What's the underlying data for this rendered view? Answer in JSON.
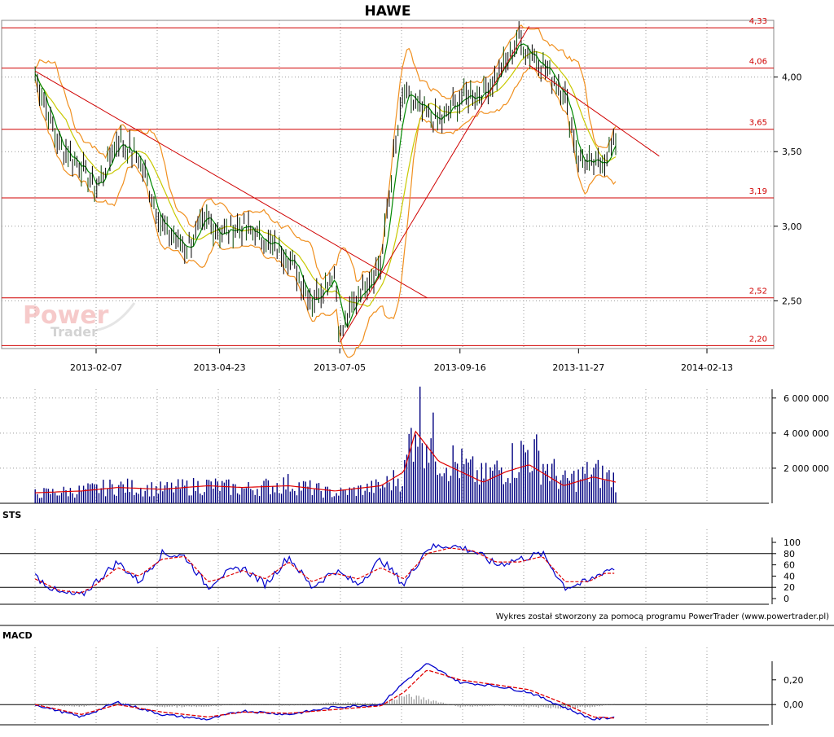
{
  "title": "HAWE",
  "watermark": {
    "line1": "Power",
    "line2": "Trader"
  },
  "credit": "Wykres został stworzony za pomocą programu PowerTrader (www.powertrader.pl)",
  "colors": {
    "price_up": "#000000",
    "price_down": "#004400",
    "sma_short": "#008800",
    "sma_long": "#c8c800",
    "bollinger": "#f09020",
    "levels": "#d00000",
    "volume_bars": "#000080",
    "volume_avg": "#e00000",
    "sts_k": "#0000cc",
    "sts_d": "#e00000",
    "macd_line": "#0000cc",
    "macd_signal": "#e00000",
    "macd_hist": "#808080"
  },
  "chart_data": [
    {
      "type": "candlestick",
      "panel": "price",
      "title": "HAWE",
      "x_tick_labels": [
        "2013-02-07",
        "2013-04-23",
        "2013-07-05",
        "2013-09-16",
        "2013-11-27",
        "2014-02-13"
      ],
      "y_tick_labels": [
        "2,50",
        "3,00",
        "3,50",
        "4,00"
      ],
      "ylim": [
        2.18,
        4.38
      ],
      "grid": true,
      "horizontal_levels": [
        {
          "value": 4.33,
          "label": "4,33"
        },
        {
          "value": 4.06,
          "label": "4,06"
        },
        {
          "value": 3.65,
          "label": "3,65"
        },
        {
          "value": 3.19,
          "label": "3,19"
        },
        {
          "value": 2.52,
          "label": "2,52"
        },
        {
          "value": 2.2,
          "label": "2,20"
        }
      ],
      "trendlines": [
        {
          "from": [
            "2013-01-01",
            4.04
          ],
          "to": [
            "2013-08-27",
            2.52
          ]
        },
        {
          "from": [
            "2013-07-05",
            2.22
          ],
          "to": [
            "2013-10-28",
            4.34
          ]
        },
        {
          "from": [
            "2013-10-28",
            4.08
          ],
          "to": [
            "2014-01-15",
            3.47
          ]
        }
      ],
      "series": [
        {
          "name": "close",
          "x": [
            "2013-01-01",
            "2013-01-15",
            "2013-01-29",
            "2013-02-07",
            "2013-02-20",
            "2013-03-05",
            "2013-03-19",
            "2013-04-02",
            "2013-04-16",
            "2013-04-23",
            "2013-05-07",
            "2013-05-21",
            "2013-06-04",
            "2013-06-18",
            "2013-07-02",
            "2013-07-05",
            "2013-07-16",
            "2013-07-30",
            "2013-08-06",
            "2013-08-13",
            "2013-08-20",
            "2013-09-03",
            "2013-09-16",
            "2013-09-30",
            "2013-10-14",
            "2013-10-21",
            "2013-11-04",
            "2013-11-18",
            "2013-11-27",
            "2013-12-06",
            "2013-12-13",
            "2013-12-20"
          ],
          "values": [
            4.02,
            3.55,
            3.4,
            3.25,
            3.58,
            3.45,
            3.0,
            2.85,
            3.05,
            2.95,
            3.0,
            2.9,
            2.8,
            2.5,
            2.7,
            2.25,
            2.55,
            2.75,
            3.4,
            3.9,
            3.8,
            3.7,
            3.85,
            3.9,
            4.1,
            4.25,
            4.1,
            3.9,
            3.45,
            3.4,
            3.45,
            3.6
          ]
        }
      ]
    },
    {
      "type": "bar",
      "panel": "volume",
      "y_tick_labels": [
        "2 000 000",
        "4 000 000",
        "6 000 000"
      ],
      "ylim": [
        0,
        6500000
      ],
      "x": [
        "2013-01-01",
        "2013-01-29",
        "2013-02-20",
        "2013-03-19",
        "2013-04-16",
        "2013-05-07",
        "2013-06-04",
        "2013-07-02",
        "2013-07-30",
        "2013-08-13",
        "2013-08-20",
        "2013-09-03",
        "2013-09-30",
        "2013-10-14",
        "2013-10-28",
        "2013-11-18",
        "2013-12-06",
        "2013-12-20"
      ],
      "values": [
        700000,
        900000,
        1200000,
        1000000,
        1300000,
        1000000,
        1400000,
        700000,
        1200000,
        2000000,
        6600000,
        3500000,
        1800000,
        2700000,
        3800000,
        1500000,
        2200000,
        1700000
      ],
      "series": [
        {
          "name": "average",
          "values": [
            600000,
            700000,
            900000,
            800000,
            1000000,
            900000,
            1000000,
            700000,
            1000000,
            1800000,
            4100000,
            2400000,
            1200000,
            1800000,
            2200000,
            1000000,
            1500000,
            1200000
          ]
        }
      ]
    },
    {
      "type": "line",
      "panel": "oscillator",
      "title": "STS",
      "y_tick_labels": [
        "0",
        "20",
        "40",
        "60",
        "80",
        "100"
      ],
      "ylim": [
        0,
        100
      ],
      "reference_lines": [
        20,
        80
      ],
      "x": [
        "2013-01-01",
        "2013-01-15",
        "2013-01-29",
        "2013-02-07",
        "2013-02-20",
        "2013-03-05",
        "2013-03-19",
        "2013-04-02",
        "2013-04-16",
        "2013-04-23",
        "2013-05-07",
        "2013-05-21",
        "2013-06-04",
        "2013-06-18",
        "2013-07-02",
        "2013-07-16",
        "2013-07-30",
        "2013-08-13",
        "2013-08-27",
        "2013-09-10",
        "2013-09-24",
        "2013-10-08",
        "2013-10-22",
        "2013-11-05",
        "2013-11-19",
        "2013-12-03",
        "2013-12-13",
        "2013-12-20"
      ],
      "series": [
        {
          "name": "%K",
          "values": [
            40,
            10,
            5,
            30,
            65,
            30,
            80,
            75,
            20,
            40,
            55,
            25,
            75,
            20,
            50,
            25,
            70,
            25,
            90,
            95,
            85,
            60,
            70,
            80,
            20,
            30,
            50,
            55
          ]
        },
        {
          "name": "%D",
          "values": [
            35,
            15,
            10,
            25,
            55,
            40,
            70,
            75,
            30,
            35,
            50,
            35,
            65,
            30,
            45,
            35,
            55,
            35,
            80,
            90,
            85,
            65,
            65,
            75,
            30,
            30,
            45,
            45
          ]
        }
      ]
    },
    {
      "type": "line",
      "panel": "oscillator",
      "title": "MACD",
      "y_tick_labels": [
        "0,00",
        "0,20"
      ],
      "ylim": [
        -0.15,
        0.35
      ],
      "reference_lines": [
        0
      ],
      "x": [
        "2013-01-01",
        "2013-01-29",
        "2013-02-20",
        "2013-03-19",
        "2013-04-16",
        "2013-05-07",
        "2013-06-04",
        "2013-07-02",
        "2013-07-30",
        "2013-08-13",
        "2013-08-27",
        "2013-09-16",
        "2013-10-08",
        "2013-10-28",
        "2013-11-18",
        "2013-12-06",
        "2013-12-20"
      ],
      "series": [
        {
          "name": "MACD",
          "values": [
            0.0,
            -0.1,
            0.02,
            -0.08,
            -0.12,
            -0.05,
            -0.08,
            -0.02,
            0.0,
            0.18,
            0.33,
            0.18,
            0.15,
            0.1,
            -0.02,
            -0.12,
            -0.1
          ]
        },
        {
          "name": "signal",
          "values": [
            0.0,
            -0.08,
            0.0,
            -0.06,
            -0.1,
            -0.06,
            -0.07,
            -0.04,
            -0.01,
            0.1,
            0.28,
            0.2,
            0.16,
            0.12,
            0.01,
            -0.1,
            -0.11
          ]
        }
      ],
      "histogram": [
        0.0,
        -0.02,
        0.02,
        -0.02,
        -0.02,
        0.01,
        -0.01,
        0.02,
        0.01,
        0.08,
        0.05,
        -0.02,
        -0.01,
        -0.02,
        -0.03,
        -0.02,
        0.01
      ]
    }
  ]
}
